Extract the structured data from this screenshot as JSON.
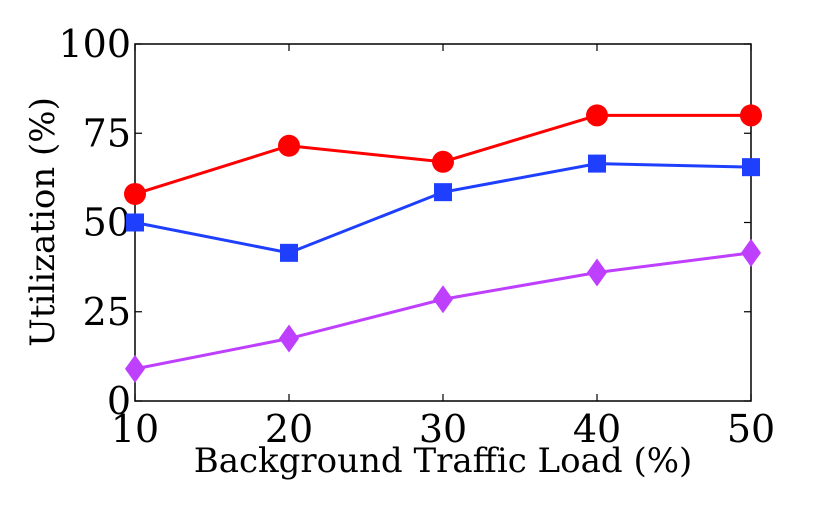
{
  "chart_data": {
    "type": "line",
    "title": "",
    "xlabel": "Background Traffic Load (%)",
    "ylabel": "Utilization (%)",
    "x": [
      10,
      20,
      30,
      40,
      50
    ],
    "xlim": [
      10,
      50
    ],
    "ylim": [
      0,
      100
    ],
    "xticks": [
      "10",
      "20",
      "30",
      "40",
      "50"
    ],
    "yticks": [
      "0",
      "25",
      "50",
      "75",
      "100"
    ],
    "grid": false,
    "series": [
      {
        "name": "red-circles",
        "color": "#ff0000",
        "marker": "circle",
        "values": [
          58,
          71.5,
          67,
          80,
          80
        ]
      },
      {
        "name": "blue-squares",
        "color": "#1f3fff",
        "marker": "square",
        "values": [
          50,
          41.5,
          58.5,
          66.5,
          65.5
        ]
      },
      {
        "name": "purple-diamonds",
        "color": "#bf3fff",
        "marker": "diamond",
        "values": [
          9,
          17.5,
          28.5,
          36,
          41.5
        ]
      }
    ]
  }
}
